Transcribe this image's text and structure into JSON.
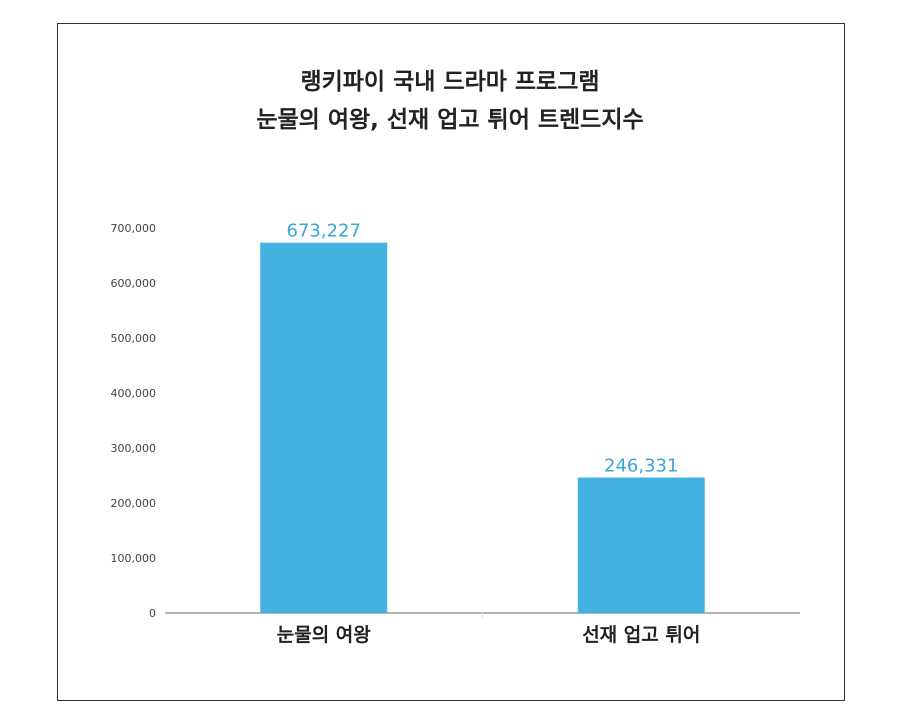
{
  "chart_data": {
    "type": "bar",
    "title_lines": [
      "랭키파이 국내 드라마 프로그램",
      "눈물의 여왕, 선재 업고 튀어 트렌드지수"
    ],
    "categories": [
      "눈물의 여왕",
      "선재 업고 튀어"
    ],
    "values": [
      673227,
      246331
    ],
    "value_labels": [
      "673,227",
      "246,331"
    ],
    "y_ticks": [
      0,
      100000,
      200000,
      300000,
      400000,
      500000,
      600000,
      700000
    ],
    "y_tick_labels": [
      "0",
      "100,000",
      "200,000",
      "300,000",
      "400,000",
      "500,000",
      "600,000",
      "700,000"
    ],
    "ylim": [
      0,
      700000
    ],
    "xlabel": "",
    "ylabel": "",
    "grid": false,
    "bar_color": "#43b2e0",
    "label_color": "#3aa6d4"
  }
}
